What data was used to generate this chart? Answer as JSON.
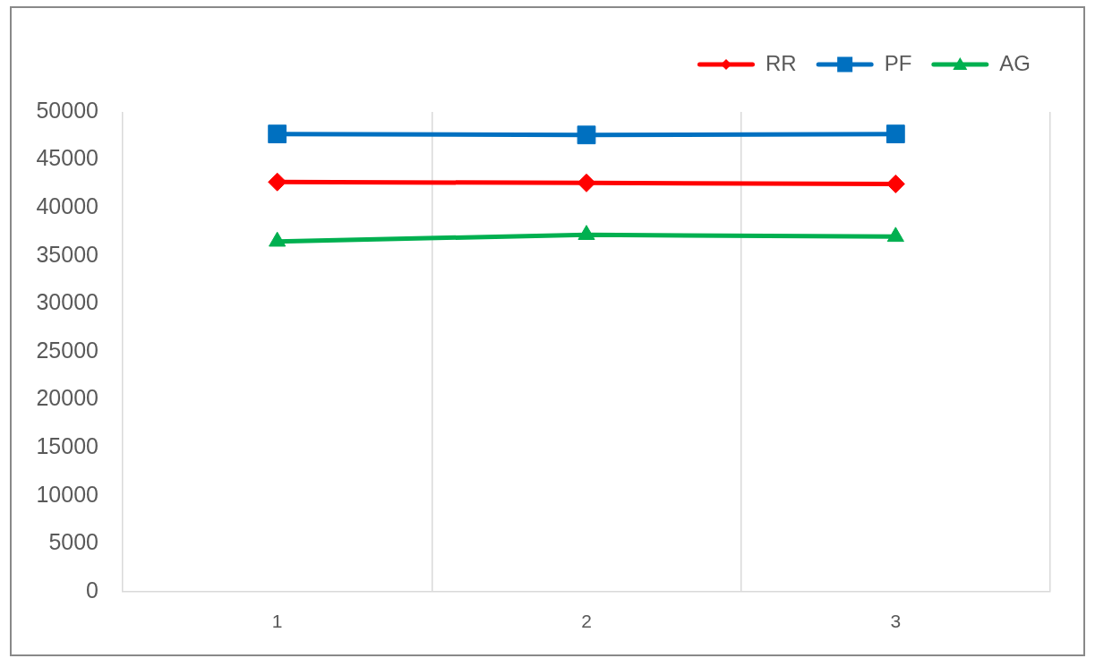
{
  "chart_data": {
    "type": "line",
    "categories": [
      "1",
      "2",
      "3"
    ],
    "series": [
      {
        "name": "RR",
        "color": "#ff0000",
        "marker": "diamond",
        "values": [
          42700,
          42600,
          42500
        ]
      },
      {
        "name": "PF",
        "color": "#0070c0",
        "marker": "square",
        "values": [
          47700,
          47600,
          47700
        ]
      },
      {
        "name": "AG",
        "color": "#00b050",
        "marker": "triangle",
        "values": [
          36500,
          37200,
          37000
        ]
      }
    ],
    "ylim": [
      0,
      50000
    ],
    "yticks": [
      0,
      5000,
      10000,
      15000,
      20000,
      25000,
      30000,
      35000,
      40000,
      45000,
      50000
    ],
    "grid": "x",
    "legend": "top right",
    "line_style": "solid"
  }
}
